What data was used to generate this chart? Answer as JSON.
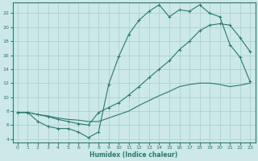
{
  "background_color": "#cce8e8",
  "grid_color": "#aacccc",
  "line_color": "#2a7a6a",
  "xlabel": "Humidex (Indice chaleur)",
  "xlim": [
    -0.5,
    23.5
  ],
  "ylim": [
    3.5,
    23.5
  ],
  "yticks": [
    4,
    6,
    8,
    10,
    12,
    14,
    16,
    18,
    20,
    22
  ],
  "xticks": [
    0,
    1,
    2,
    3,
    4,
    5,
    6,
    7,
    8,
    9,
    10,
    11,
    12,
    13,
    14,
    15,
    16,
    17,
    18,
    19,
    20,
    21,
    22,
    23
  ],
  "curve1_x": [
    0,
    1,
    2,
    3,
    4,
    5,
    6,
    7,
    8,
    9,
    10,
    11,
    12,
    13,
    14,
    15,
    16,
    17,
    18,
    19,
    20,
    21,
    22,
    23
  ],
  "curve1_y": [
    7.8,
    7.8,
    6.5,
    5.8,
    5.5,
    5.5,
    5.0,
    4.2,
    5.0,
    11.8,
    15.8,
    19.0,
    21.0,
    22.3,
    23.2,
    21.5,
    22.5,
    22.3,
    23.2,
    22.0,
    21.5,
    17.5,
    15.7,
    12.2
  ],
  "curve2_x": [
    0,
    1,
    2,
    3,
    4,
    5,
    6,
    7,
    8,
    9,
    10,
    11,
    12,
    13,
    14,
    15,
    16,
    17,
    18,
    19,
    20,
    21,
    22,
    23
  ],
  "curve2_y": [
    7.8,
    7.8,
    7.5,
    7.2,
    6.8,
    6.5,
    6.2,
    6.0,
    7.8,
    8.5,
    9.2,
    10.3,
    11.5,
    12.8,
    14.0,
    15.2,
    16.8,
    18.0,
    19.5,
    20.3,
    20.5,
    20.3,
    18.5,
    16.5
  ],
  "curve3_x": [
    0,
    1,
    2,
    3,
    4,
    5,
    6,
    7,
    8,
    9,
    10,
    11,
    12,
    13,
    14,
    15,
    16,
    17,
    18,
    19,
    20,
    21,
    22,
    23
  ],
  "curve3_y": [
    7.8,
    7.8,
    7.5,
    7.3,
    7.0,
    6.8,
    6.7,
    6.5,
    6.5,
    7.0,
    7.5,
    8.0,
    8.8,
    9.5,
    10.2,
    10.8,
    11.5,
    11.8,
    12.0,
    12.0,
    11.8,
    11.5,
    11.7,
    12.0
  ]
}
